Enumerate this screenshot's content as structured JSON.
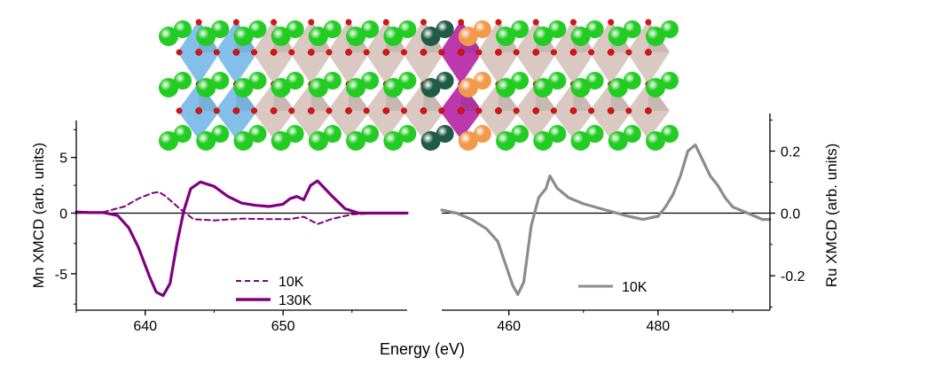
{
  "figure": {
    "xlabel": "Energy (eV)",
    "colors": {
      "mn": "#800080",
      "ru": "#8c8c8c",
      "zero_line": "#000000",
      "octa_blue": "#6fb4e6",
      "octa_tan": "#cdb5ae",
      "octa_magenta": "#b0159d",
      "atom_green": "#22cc22",
      "atom_dark_green": "#1f5c45",
      "atom_orange": "#f29a4a",
      "atom_red": "#dd1111"
    }
  },
  "crystal_structure": {
    "blocks": [
      "blue",
      "blue",
      "tan",
      "tan",
      "tan",
      "tan",
      "tan",
      "magenta",
      "tan",
      "tan",
      "tan",
      "tan",
      "tan"
    ]
  },
  "chart_data": [
    {
      "type": "line",
      "ylabel": "Mn XMCD (arb. units)",
      "xlim": [
        635,
        659
      ],
      "ylim": [
        -8,
        8
      ],
      "xticks": [
        640,
        650
      ],
      "yticks": [
        -5,
        0,
        5
      ],
      "xtick_labels": [
        "640",
        "650"
      ],
      "ytick_labels": [
        "-5",
        "0",
        "5"
      ],
      "legend_position": "bottom-center",
      "series": [
        {
          "name": "10K",
          "style": "dashed",
          "x": [
            635,
            637,
            638.5,
            639.5,
            640.5,
            641,
            641.5,
            642.5,
            643.5,
            645,
            647,
            649,
            650.5,
            651.5,
            652.5,
            653.5,
            655,
            657,
            659
          ],
          "y": [
            0,
            0.1,
            0.6,
            1.3,
            1.8,
            1.9,
            1.5,
            0.4,
            -0.5,
            -0.6,
            -0.45,
            -0.5,
            -0.5,
            -0.3,
            -0.9,
            -0.5,
            -0.1,
            0,
            0
          ]
        },
        {
          "name": "130K",
          "style": "solid",
          "x": [
            635,
            636,
            637,
            638,
            638.8,
            639.5,
            640.3,
            640.8,
            641.3,
            641.8,
            642.3,
            642.8,
            643.3,
            644,
            645,
            646,
            647,
            648,
            649,
            650,
            650.5,
            651,
            651.5,
            652,
            652.5,
            653.5,
            654.5,
            655.5,
            657,
            659
          ],
          "y": [
            0.1,
            0.05,
            0.05,
            -0.2,
            -1.2,
            -2.8,
            -5.2,
            -6.5,
            -6.8,
            -5.8,
            -2.5,
            0.2,
            2.2,
            2.8,
            2.4,
            1.5,
            0.9,
            0.7,
            0.6,
            0.8,
            1.3,
            1.5,
            1.2,
            2.5,
            2.9,
            1.6,
            0.4,
            0,
            0,
            0
          ]
        }
      ]
    },
    {
      "type": "line",
      "ylabel": "Ru XMCD (arb. units)",
      "xlim": [
        451,
        495
      ],
      "ylim": [
        -0.31,
        0.31
      ],
      "xticks": [
        460,
        480
      ],
      "yticks": [
        -0.2,
        0.0,
        0.2
      ],
      "xtick_labels": [
        "460",
        "480"
      ],
      "ytick_labels": [
        "-0.2",
        "0.0",
        "0.2"
      ],
      "legend_position": "bottom-right",
      "series": [
        {
          "name": "10K",
          "style": "solid",
          "x": [
            451,
            453,
            455,
            457,
            458.5,
            459.5,
            460.5,
            461.2,
            462,
            463,
            464,
            465,
            465.5,
            466.5,
            468,
            470,
            473,
            476,
            478,
            480,
            481,
            482,
            483,
            484,
            485,
            486,
            487,
            488,
            489,
            490,
            492,
            494,
            495
          ],
          "y": [
            0.01,
            0.0,
            -0.02,
            -0.05,
            -0.09,
            -0.16,
            -0.23,
            -0.26,
            -0.22,
            -0.04,
            0.05,
            0.08,
            0.12,
            0.08,
            0.05,
            0.03,
            0.01,
            -0.01,
            -0.02,
            -0.01,
            0.02,
            0.06,
            0.12,
            0.2,
            0.22,
            0.17,
            0.12,
            0.09,
            0.05,
            0.02,
            0.0,
            -0.02,
            -0.02
          ]
        }
      ]
    }
  ]
}
